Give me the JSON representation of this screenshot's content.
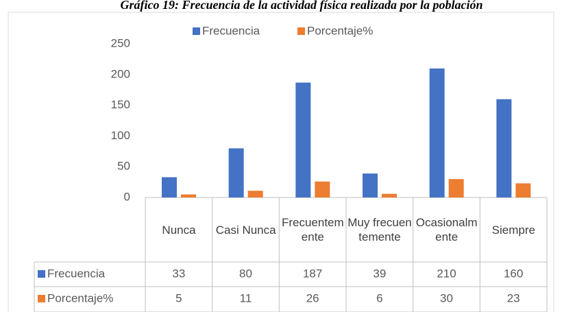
{
  "chart_data": {
    "type": "bar",
    "title": "Gráfico 19: Frecuencia de la actividad física realizada por la población",
    "categories": [
      "Nunca",
      "Casi Nunca",
      "Frecuentemente",
      "Muy frecuentemente",
      "Ocasionalmente",
      "Siempre"
    ],
    "series": [
      {
        "name": "Frecuencia",
        "color": "#4472c4",
        "values": [
          33,
          80,
          187,
          39,
          210,
          160
        ]
      },
      {
        "name": "Porcentaje%",
        "color": "#ed7d31",
        "values": [
          5,
          11,
          26,
          6,
          30,
          23
        ]
      }
    ],
    "ylim": [
      0,
      250
    ],
    "yticks": [
      0,
      50,
      100,
      150,
      200,
      250
    ],
    "grid": false,
    "legend": "top"
  }
}
